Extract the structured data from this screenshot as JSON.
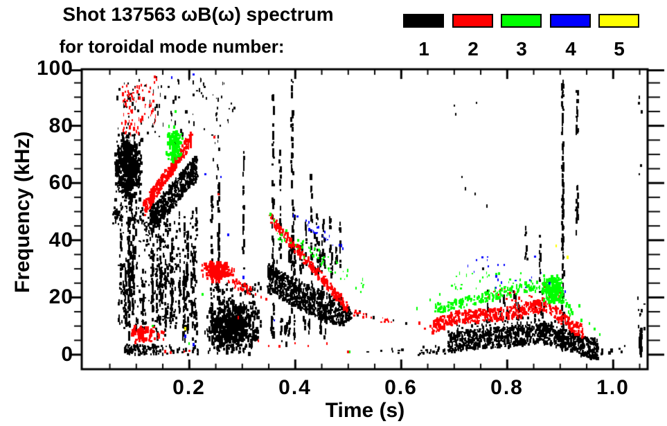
{
  "title": {
    "line1": "Shot 137563 ωB(ω) spectrum",
    "line2": "for toroidal mode number:"
  },
  "legend": {
    "items": [
      {
        "label": "1",
        "color": "#000000"
      },
      {
        "label": "2",
        "color": "#ff0000"
      },
      {
        "label": "3",
        "color": "#00ff00"
      },
      {
        "label": "4",
        "color": "#0000ff"
      },
      {
        "label": "5",
        "color": "#ffff00"
      }
    ]
  },
  "chart_data": {
    "type": "scatter",
    "title": "Shot 137563 ωB(ω) spectrum for toroidal mode number: 1-5",
    "xlabel": "Time (s)",
    "ylabel": "Frequency (kHz)",
    "xlim": [
      0,
      1.065
    ],
    "ylim": [
      -5,
      100
    ],
    "grid": false,
    "legend_position": "top-right",
    "x_tick_labels": [
      "0.2",
      "0.4",
      "0.6",
      "0.8",
      "1.0"
    ],
    "x_major_ticks": [
      0.2,
      0.4,
      0.6,
      0.8,
      1.0
    ],
    "x_minor_step": 0.05,
    "y_tick_labels": [
      "100",
      "80",
      "60",
      "40",
      "20",
      "0"
    ],
    "y_major_ticks": [
      100,
      80,
      60,
      40,
      20,
      0
    ],
    "y_minor_step": 5,
    "series_colors": {
      "1": "#000000",
      "2": "#ff0000",
      "3": "#00ff00",
      "4": "#0000ff",
      "5": "#ffff00"
    },
    "series_names": {
      "1": "n=1",
      "2": "n=2",
      "3": "n=3",
      "4": "n=4",
      "5": "n=5"
    },
    "features": [
      {
        "type": "blob",
        "m": 1,
        "t": [
          0.058,
          0.112
        ],
        "f": [
          52,
          78
        ],
        "n": 550
      },
      {
        "type": "scatter",
        "m": 1,
        "t": [
          0.055,
          0.115
        ],
        "f": [
          45,
          52
        ],
        "n": 60
      },
      {
        "type": "vfield",
        "m": 1,
        "t": [
          0.065,
          0.215
        ],
        "fmin": [
          3,
          18
        ],
        "fmax": [
          26,
          56
        ],
        "count": 34,
        "per": 16
      },
      {
        "type": "scatter",
        "m": 1,
        "t": [
          0.065,
          0.215
        ],
        "f": [
          8,
          50
        ],
        "n": 260
      },
      {
        "type": "band",
        "m": 1,
        "from": [
          0.125,
          46
        ],
        "to": [
          0.215,
          66
        ],
        "w": 9,
        "n": 480
      },
      {
        "type": "scatter",
        "m": 1,
        "t": [
          0.06,
          0.235
        ],
        "f": [
          74,
          97
        ],
        "n": 85,
        "sz": [
          1,
          3,
          2,
          7
        ]
      },
      {
        "type": "scatter",
        "m": 1,
        "t": [
          0.078,
          0.142
        ],
        "f": [
          0,
          3.5
        ],
        "n": 90
      },
      {
        "type": "scatter",
        "m": 1,
        "t": [
          0.142,
          0.26
        ],
        "f": [
          0,
          3
        ],
        "n": 30
      },
      {
        "type": "vstreak",
        "m": 1,
        "t": 0.243,
        "f": [
          3,
          55
        ],
        "n": 40
      },
      {
        "type": "vstreak",
        "m": 1,
        "t": 0.2555,
        "f": [
          3,
          62
        ],
        "n": 55
      },
      {
        "type": "scatter",
        "m": 1,
        "t": [
          0.243,
          0.258
        ],
        "f": [
          62,
          91
        ],
        "n": 16,
        "sz": [
          1,
          3,
          2,
          6
        ]
      },
      {
        "type": "scatter",
        "m": 1,
        "t": [
          0.222,
          0.285
        ],
        "f": [
          80,
          95
        ],
        "n": 14,
        "sz": [
          1,
          3,
          2,
          5
        ]
      },
      {
        "type": "blob",
        "m": 1,
        "t": [
          0.229,
          0.336
        ],
        "f": [
          0,
          20
        ],
        "n": 680
      },
      {
        "type": "scatter",
        "m": 1,
        "t": [
          0.24,
          0.335
        ],
        "f": [
          20,
          25
        ],
        "n": 45
      },
      {
        "type": "vstreak",
        "m": 1,
        "t": 0.303,
        "f": [
          28,
          74
        ],
        "n": 22
      },
      {
        "type": "pband",
        "m": 1,
        "pts": [
          [
            0.348,
            27
          ],
          [
            0.4,
            21.5
          ],
          [
            0.45,
            17
          ],
          [
            0.492,
            14.5
          ]
        ],
        "w": 10,
        "n": 720
      },
      {
        "type": "vfield",
        "m": 1,
        "t": [
          0.352,
          0.487
        ],
        "fmin": [
          26,
          32
        ],
        "fmax": [
          34,
          52
        ],
        "count": 18,
        "per": 8
      },
      {
        "type": "vfield",
        "m": 1,
        "t": [
          0.355,
          0.46
        ],
        "fmin": [
          2,
          8
        ],
        "fmax": [
          12,
          18
        ],
        "count": 12,
        "per": 7
      },
      {
        "type": "vstreak",
        "m": 1,
        "t": 0.358,
        "f": [
          14,
          93
        ],
        "n": 42
      },
      {
        "type": "vstreak",
        "m": 1,
        "t": 0.394,
        "f": [
          15,
          97
        ],
        "n": 48
      },
      {
        "type": "vstreak",
        "m": 1,
        "t": 0.372,
        "f": [
          30,
          72
        ],
        "n": 18
      },
      {
        "type": "vstreak",
        "m": 1,
        "t": 0.431,
        "f": [
          22,
          63
        ],
        "n": 22
      },
      {
        "type": "vstreak",
        "m": 1,
        "t": 0.452,
        "f": [
          16,
          48
        ],
        "n": 14
      },
      {
        "type": "band",
        "m": 1,
        "from": [
          0.49,
          14
        ],
        "to": [
          0.508,
          14
        ],
        "w": 5,
        "n": 40
      },
      {
        "type": "dots",
        "m": 1,
        "pts": [
          [
            0.517,
            14
          ],
          [
            0.522,
            15
          ],
          [
            0.528,
            13
          ],
          [
            0.535,
            14
          ],
          [
            0.548,
            13
          ],
          [
            0.585,
            12
          ],
          [
            0.61,
            11
          ]
        ]
      },
      {
        "type": "scatter",
        "m": 1,
        "t": [
          0.5,
          0.66
        ],
        "f": [
          0,
          2
        ],
        "n": 10,
        "sz": [
          2,
          4,
          2,
          4
        ]
      },
      {
        "type": "scatter",
        "m": 1,
        "t": [
          0.63,
          0.69
        ],
        "f": [
          0,
          3
        ],
        "n": 18
      },
      {
        "type": "pband",
        "m": 1,
        "pts": [
          [
            0.688,
            4.5
          ],
          [
            0.75,
            5.5
          ],
          [
            0.82,
            6.5
          ],
          [
            0.87,
            7.5
          ],
          [
            0.915,
            5
          ],
          [
            0.95,
            2.5
          ],
          [
            0.972,
            1.8
          ]
        ],
        "w": 7,
        "n": 950
      },
      {
        "type": "scatter",
        "m": 1,
        "t": [
          0.7,
          0.92
        ],
        "f": [
          9,
          13
        ],
        "n": 55,
        "sz": [
          2,
          3,
          2,
          5
        ]
      },
      {
        "type": "vfield",
        "m": 1,
        "t": [
          0.72,
          0.88
        ],
        "fmin": [
          10,
          14
        ],
        "fmax": [
          16,
          24
        ],
        "count": 10,
        "per": 5
      },
      {
        "type": "vstreak",
        "m": 1,
        "t": 0.905,
        "f": [
          2,
          97
        ],
        "n": 110
      },
      {
        "type": "vstreak",
        "m": 1,
        "t": 0.932,
        "f": [
          42,
          62
        ],
        "n": 18
      },
      {
        "type": "vstreak",
        "m": 1,
        "t": 0.932,
        "f": [
          75,
          92
        ],
        "n": 12
      },
      {
        "type": "vstreak",
        "m": 1,
        "t": 0.836,
        "f": [
          33,
          47
        ],
        "n": 10
      },
      {
        "type": "vstreak",
        "m": 1,
        "t": 0.862,
        "f": [
          20,
          42
        ],
        "n": 12
      },
      {
        "type": "dots",
        "m": 1,
        "pts": [
          [
            0.7,
            87
          ],
          [
            0.703,
            84
          ],
          [
            0.715,
            62
          ],
          [
            0.722,
            58
          ],
          [
            0.74,
            56
          ],
          [
            0.742,
            88
          ],
          [
            0.755,
            30
          ],
          [
            0.762,
            52
          ]
        ]
      },
      {
        "type": "scatter",
        "m": 1,
        "t": [
          0.975,
          1.0
        ],
        "f": [
          0,
          2
        ],
        "n": 10
      },
      {
        "type": "dots",
        "m": 1,
        "pts": [
          [
            1.012,
            2
          ],
          [
            1.016,
            1
          ],
          [
            1.022,
            3
          ]
        ]
      },
      {
        "type": "vstreak",
        "m": 1,
        "t": 1.052,
        "f": [
          0,
          9
        ],
        "n": 45
      },
      {
        "type": "scatter",
        "m": 1,
        "t": [
          1.045,
          1.06
        ],
        "f": [
          9,
          20
        ],
        "n": 8
      },
      {
        "type": "dots",
        "m": 1,
        "pts": [
          [
            1.05,
            63
          ],
          [
            1.052,
            66
          ],
          [
            1.048,
            88
          ],
          [
            1.053,
            85
          ],
          [
            1.05,
            90
          ]
        ]
      },
      {
        "type": "scatter",
        "m": 2,
        "t": [
          0.073,
          0.107
        ],
        "f": [
          77,
          94
        ],
        "n": 60,
        "sz": [
          1,
          3,
          2,
          6
        ]
      },
      {
        "type": "scatter",
        "m": 2,
        "t": [
          0.108,
          0.138
        ],
        "f": [
          80,
          97
        ],
        "n": 28,
        "sz": [
          1,
          3,
          2,
          6
        ]
      },
      {
        "type": "band",
        "m": 2,
        "from": [
          0.115,
          51
        ],
        "to": [
          0.205,
          76
        ],
        "w": 5,
        "n": 300
      },
      {
        "type": "blob",
        "m": 2,
        "t": [
          0.088,
          0.138
        ],
        "f": [
          4,
          10
        ],
        "n": 70
      },
      {
        "type": "scatter",
        "m": 2,
        "t": [
          0.138,
          0.16
        ],
        "f": [
          5,
          9
        ],
        "n": 10
      },
      {
        "type": "dots",
        "m": 2,
        "pts": [
          [
            0.155,
            1
          ],
          [
            0.165,
            0.7
          ],
          [
            0.19,
            1
          ],
          [
            0.2,
            1.2
          ]
        ]
      },
      {
        "type": "blob",
        "m": 2,
        "t": [
          0.222,
          0.285
        ],
        "f": [
          25,
          33
        ],
        "n": 200
      },
      {
        "type": "band",
        "m": 2,
        "from": [
          0.283,
          25
        ],
        "to": [
          0.318,
          22.5
        ],
        "w": 3,
        "n": 40
      },
      {
        "type": "dots",
        "m": 2,
        "pts": [
          [
            0.325,
            21
          ],
          [
            0.335,
            20
          ],
          [
            0.345,
            19.5
          ],
          [
            0.33,
            5
          ],
          [
            0.292,
            13
          ]
        ]
      },
      {
        "type": "dots",
        "m": 2,
        "pts": [
          [
            0.255,
            56
          ],
          [
            0.248,
            76
          ]
        ]
      },
      {
        "type": "band",
        "m": 2,
        "from": [
          0.352,
          48
        ],
        "to": [
          0.5,
          16
        ],
        "w": 3.5,
        "n": 260
      },
      {
        "type": "band",
        "m": 2,
        "from": [
          0.5,
          15
        ],
        "to": [
          0.585,
          11.5
        ],
        "w": 2,
        "n": 22,
        "sz": [
          1,
          3,
          2,
          4
        ]
      },
      {
        "type": "dots",
        "m": 2,
        "pts": [
          [
            0.35,
            3
          ],
          [
            0.37,
            3
          ],
          [
            0.4,
            4
          ],
          [
            0.425,
            3
          ],
          [
            0.46,
            4
          ],
          [
            0.5,
            1
          ],
          [
            0.575,
            12
          ],
          [
            0.634,
            11
          ],
          [
            0.645,
            9
          ],
          [
            0.655,
            10
          ]
        ]
      },
      {
        "type": "pband",
        "m": 2,
        "pts": [
          [
            0.658,
            9.5
          ],
          [
            0.7,
            13
          ],
          [
            0.76,
            13.5
          ],
          [
            0.82,
            15
          ],
          [
            0.875,
            17.5
          ],
          [
            0.92,
            10
          ],
          [
            0.945,
            8
          ]
        ],
        "w": 4.5,
        "n": 520
      },
      {
        "type": "scatter",
        "m": 2,
        "t": [
          0.75,
          0.9
        ],
        "f": [
          18,
          23
        ],
        "n": 30,
        "sz": [
          2,
          3,
          2,
          5
        ]
      },
      {
        "type": "scatter",
        "m": 2,
        "t": [
          0.86,
          0.9
        ],
        "f": [
          23,
          26
        ],
        "n": 8
      },
      {
        "type": "blob",
        "m": 3,
        "t": [
          0.155,
          0.188
        ],
        "f": [
          67,
          80
        ],
        "n": 130
      },
      {
        "type": "dots",
        "m": 3,
        "pts": [
          [
            0.174,
            85
          ],
          [
            0.131,
            10
          ],
          [
            0.199,
            4
          ],
          [
            0.225,
            21
          ],
          [
            0.503,
            1
          ]
        ]
      },
      {
        "type": "band",
        "m": 3,
        "from": [
          0.365,
          43
        ],
        "to": [
          0.53,
          24
        ],
        "w": 6,
        "n": 55,
        "sz": [
          1,
          3,
          2,
          5
        ]
      },
      {
        "type": "dots",
        "m": 3,
        "pts": [
          [
            0.353,
            49
          ],
          [
            0.36,
            47
          ]
        ]
      },
      {
        "type": "pband",
        "m": 3,
        "pts": [
          [
            0.665,
            16
          ],
          [
            0.7,
            17.5
          ],
          [
            0.78,
            21
          ],
          [
            0.845,
            24
          ],
          [
            0.885,
            23
          ],
          [
            0.925,
            14
          ]
        ],
        "w": 3.5,
        "n": 240
      },
      {
        "type": "blob",
        "m": 3,
        "t": [
          0.862,
          0.908
        ],
        "f": [
          18,
          28
        ],
        "n": 170
      },
      {
        "type": "scatter",
        "m": 3,
        "t": [
          0.69,
          0.83
        ],
        "f": [
          22,
          29
        ],
        "n": 28,
        "sz": [
          1,
          3,
          2,
          5
        ]
      },
      {
        "type": "dots",
        "m": 3,
        "pts": [
          [
            0.94,
            12
          ],
          [
            0.955,
            11
          ],
          [
            0.965,
            9
          ],
          [
            0.975,
            7
          ],
          [
            0.63,
            16
          ],
          [
            0.655,
            19
          ],
          [
            0.673,
            21
          ],
          [
            0.937,
            17
          ]
        ]
      },
      {
        "type": "band",
        "m": 4,
        "from": [
          0.39,
          50
        ],
        "to": [
          0.49,
          37
        ],
        "w": 3,
        "n": 24,
        "sz": [
          1,
          3,
          2,
          5
        ]
      },
      {
        "type": "scatter",
        "m": 4,
        "t": [
          0.72,
          0.875
        ],
        "f": [
          21,
          35
        ],
        "n": 20,
        "sz": [
          1,
          3,
          2,
          5
        ]
      },
      {
        "type": "dots",
        "m": 4,
        "pts": [
          [
            0.209,
            98
          ],
          [
            0.23,
            63
          ],
          [
            0.26,
            62
          ],
          [
            0.273,
            42
          ],
          [
            0.303,
            27
          ],
          [
            0.193,
            6.5
          ],
          [
            0.208,
            3.5
          ],
          [
            0.361,
            12
          ],
          [
            0.49,
            37
          ],
          [
            0.88,
            25
          ],
          [
            0.91,
            22
          ],
          [
            0.167,
            97
          ]
        ]
      },
      {
        "type": "dots",
        "m": 5,
        "pts": [
          [
            0.193,
            9
          ],
          [
            0.893,
            38
          ],
          [
            0.914,
            34
          ]
        ]
      }
    ]
  }
}
